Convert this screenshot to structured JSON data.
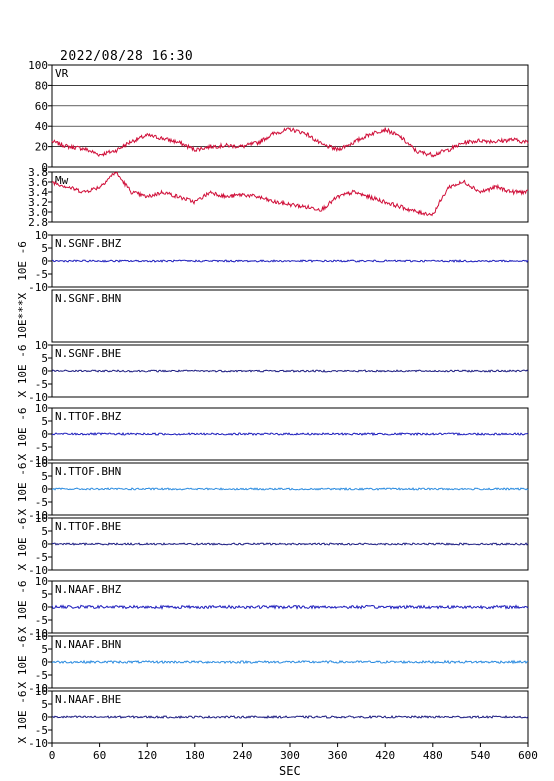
{
  "timestamp": "2022/08/28 16:30",
  "xaxis": {
    "label": "SEC",
    "ticks": [
      0,
      60,
      120,
      180,
      240,
      300,
      360,
      420,
      480,
      540,
      600
    ],
    "range": [
      0,
      600
    ]
  },
  "chart_data": [
    {
      "type": "line",
      "name": "VR",
      "ylim": [
        0,
        100
      ],
      "yticks": [
        0,
        20,
        40,
        60,
        80,
        100
      ],
      "grid": true,
      "color": "#d0103a",
      "x": [
        0,
        20,
        40,
        60,
        80,
        100,
        120,
        140,
        160,
        180,
        200,
        220,
        240,
        260,
        280,
        300,
        320,
        340,
        360,
        380,
        400,
        420,
        440,
        460,
        480,
        500,
        520,
        540,
        560,
        580,
        600
      ],
      "values": [
        25,
        20,
        18,
        12,
        16,
        25,
        31,
        28,
        24,
        17,
        20,
        21,
        20,
        24,
        33,
        37,
        33,
        22,
        17,
        24,
        32,
        37,
        29,
        15,
        12,
        17,
        24,
        26,
        25,
        27,
        24
      ]
    },
    {
      "type": "line",
      "name": "Mw",
      "ylim": [
        2.8,
        3.8
      ],
      "yticks": [
        2.8,
        3.0,
        3.2,
        3.4,
        3.6,
        3.8
      ],
      "grid": false,
      "color": "#d0103a",
      "x": [
        0,
        20,
        40,
        60,
        80,
        100,
        120,
        140,
        160,
        180,
        200,
        220,
        240,
        260,
        280,
        300,
        320,
        340,
        360,
        380,
        400,
        420,
        440,
        460,
        480,
        500,
        520,
        540,
        560,
        580,
        600
      ],
      "values": [
        3.6,
        3.5,
        3.4,
        3.5,
        3.8,
        3.4,
        3.3,
        3.4,
        3.3,
        3.2,
        3.4,
        3.3,
        3.35,
        3.3,
        3.2,
        3.15,
        3.1,
        3.05,
        3.3,
        3.4,
        3.3,
        3.2,
        3.1,
        3.0,
        2.95,
        3.5,
        3.6,
        3.4,
        3.5,
        3.4,
        3.4
      ]
    },
    {
      "type": "line",
      "name": "N.SGNF.BHZ",
      "unitlabel": "10E -6",
      "ylim": [
        -10,
        10
      ],
      "yticks": [
        -10,
        -5,
        0,
        5,
        10
      ],
      "color": "#1c1cbc",
      "amplitude": 0.35,
      "hasData": true
    },
    {
      "type": "line",
      "name": "N.SGNF.BHN",
      "unitlabel": "10E***X",
      "ylim": [
        -10,
        10
      ],
      "yticks": [],
      "color": "#1c1cbc",
      "amplitude": 0,
      "hasData": false
    },
    {
      "type": "line",
      "name": "N.SGNF.BHE",
      "unitlabel": "X 10E -6",
      "ylim": [
        -10,
        10
      ],
      "yticks": [
        -10,
        -5,
        0,
        5,
        10
      ],
      "color": "#1a1a80",
      "amplitude": 0.35,
      "hasData": true
    },
    {
      "type": "line",
      "name": "N.TTOF.BHZ",
      "unitlabel": "X 10E -6",
      "ylim": [
        -10,
        10
      ],
      "yticks": [
        -10,
        -5,
        0,
        5,
        10
      ],
      "color": "#1c1cbc",
      "amplitude": 0.4,
      "hasData": true
    },
    {
      "type": "line",
      "name": "N.TTOF.BHN",
      "unitlabel": "X 10E -6",
      "ylim": [
        -10,
        10
      ],
      "yticks": [
        -10,
        -5,
        0,
        5,
        10
      ],
      "color": "#2a8be0",
      "amplitude": 0.35,
      "hasData": true
    },
    {
      "type": "line",
      "name": "N.TTOF.BHE",
      "unitlabel": "X 10E -6",
      "ylim": [
        -10,
        10
      ],
      "yticks": [
        -10,
        -5,
        0,
        5,
        10
      ],
      "color": "#1a1a80",
      "amplitude": 0.35,
      "hasData": true
    },
    {
      "type": "line",
      "name": "N.NAAF.BHZ",
      "unitlabel": "X 10E -6",
      "ylim": [
        -10,
        10
      ],
      "yticks": [
        -10,
        -5,
        0,
        5,
        10
      ],
      "color": "#1c1cbc",
      "amplitude": 0.6,
      "hasData": true
    },
    {
      "type": "line",
      "name": "N.NAAF.BHN",
      "unitlabel": "X 10E -6",
      "ylim": [
        -10,
        10
      ],
      "yticks": [
        -10,
        -5,
        0,
        5,
        10
      ],
      "color": "#2a8be0",
      "amplitude": 0.45,
      "hasData": true
    },
    {
      "type": "line",
      "name": "N.NAAF.BHE",
      "unitlabel": "X 10E -6",
      "ylim": [
        -10,
        10
      ],
      "yticks": [
        -10,
        -5,
        0,
        5,
        10
      ],
      "color": "#1a1a80",
      "amplitude": 0.4,
      "hasData": true
    }
  ]
}
